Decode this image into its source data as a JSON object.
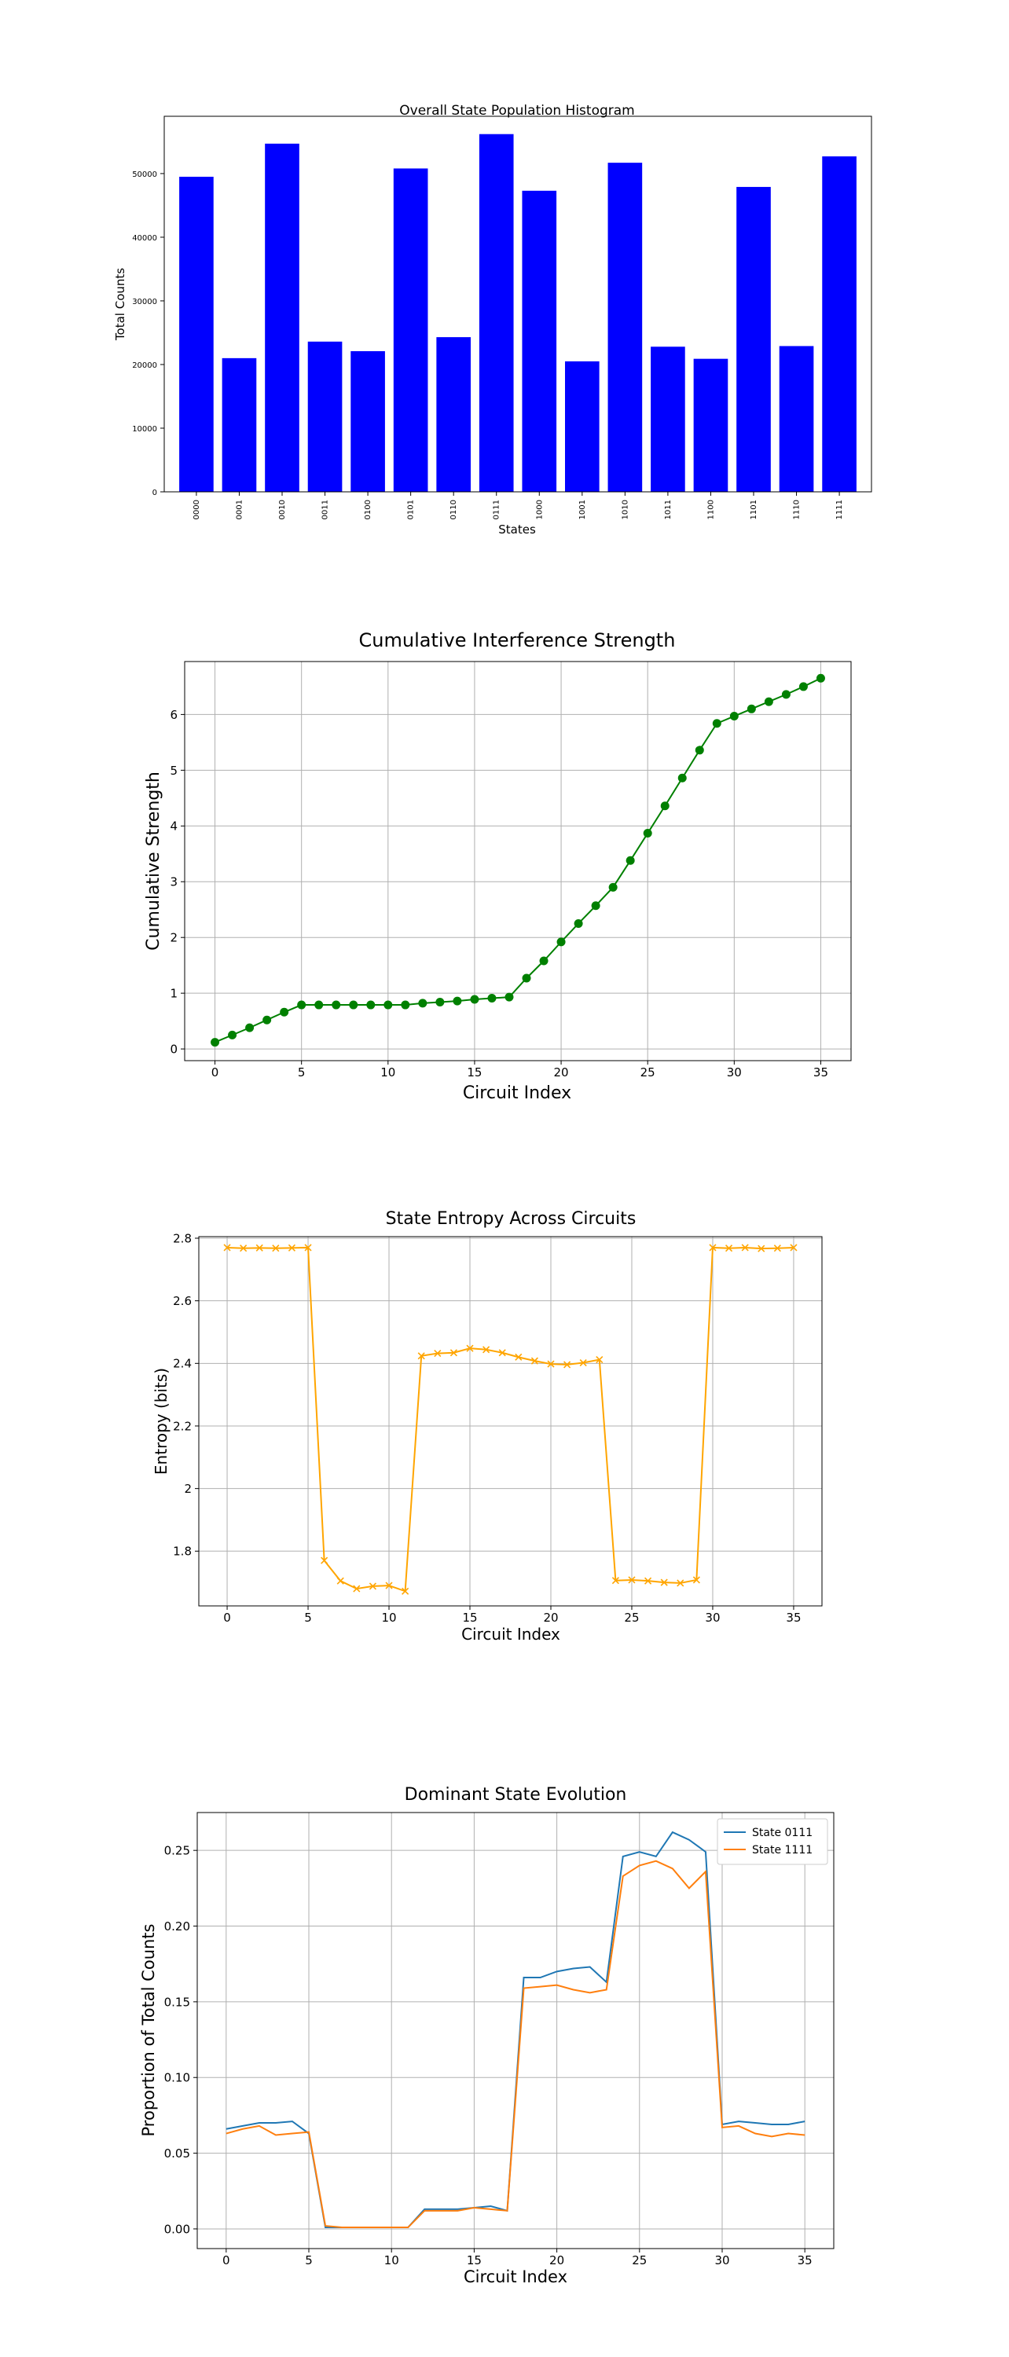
{
  "chart_data": [
    {
      "type": "bar",
      "title": "Overall State Population Histogram",
      "xlabel": "States",
      "ylabel": "Total Counts",
      "categories": [
        "0000",
        "0001",
        "0010",
        "0011",
        "0100",
        "0101",
        "0110",
        "0111",
        "1000",
        "1001",
        "1010",
        "1011",
        "1100",
        "1101",
        "1110",
        "1111"
      ],
      "values": [
        49500,
        21000,
        54700,
        23600,
        22100,
        50800,
        24300,
        56200,
        47300,
        20500,
        51700,
        22800,
        20900,
        47900,
        22900,
        52700
      ],
      "ylim": [
        0,
        59000
      ],
      "yticks": [
        0,
        10000,
        20000,
        30000,
        40000,
        50000
      ],
      "bar_color": "#0000ff",
      "grid": false
    },
    {
      "type": "line",
      "title": "Cumulative Interference Strength",
      "xlabel": "Circuit Index",
      "ylabel": "Cumulative Strength",
      "x": [
        0,
        1,
        2,
        3,
        4,
        5,
        6,
        7,
        8,
        9,
        10,
        11,
        12,
        13,
        14,
        15,
        16,
        17,
        18,
        19,
        20,
        21,
        22,
        23,
        24,
        25,
        26,
        27,
        28,
        29,
        30,
        31,
        32,
        33,
        34,
        35
      ],
      "series": [
        {
          "values": [
            0.12,
            0.25,
            0.38,
            0.52,
            0.66,
            0.79,
            0.79,
            0.79,
            0.79,
            0.79,
            0.79,
            0.79,
            0.82,
            0.84,
            0.86,
            0.89,
            0.91,
            0.93,
            1.27,
            1.58,
            1.92,
            2.25,
            2.57,
            2.9,
            3.38,
            3.87,
            4.36,
            4.86,
            5.36,
            5.84,
            5.97,
            6.1,
            6.23,
            6.36,
            6.5,
            6.65
          ],
          "color": "#008000",
          "marker": "circle"
        }
      ],
      "xlim": [
        -1.75,
        36.75
      ],
      "ylim": [
        -0.21,
        6.95
      ],
      "xticks": [
        0,
        5,
        10,
        15,
        20,
        25,
        30,
        35
      ],
      "yticks": [
        0,
        1,
        2,
        3,
        4,
        5,
        6
      ],
      "grid": true
    },
    {
      "type": "line",
      "title": "State Entropy Across Circuits",
      "xlabel": "Circuit Index",
      "ylabel": "Entropy (bits)",
      "x": [
        0,
        1,
        2,
        3,
        4,
        5,
        6,
        7,
        8,
        9,
        10,
        11,
        12,
        13,
        14,
        15,
        16,
        17,
        18,
        19,
        20,
        21,
        22,
        23,
        24,
        25,
        26,
        27,
        28,
        29,
        30,
        31,
        32,
        33,
        34,
        35
      ],
      "series": [
        {
          "values": [
            2.77,
            2.768,
            2.769,
            2.768,
            2.769,
            2.77,
            1.77,
            1.705,
            1.68,
            1.688,
            1.69,
            1.672,
            2.424,
            2.432,
            2.434,
            2.448,
            2.444,
            2.434,
            2.42,
            2.408,
            2.398,
            2.396,
            2.402,
            2.412,
            1.706,
            1.708,
            1.705,
            1.7,
            1.698,
            1.708,
            2.77,
            2.768,
            2.77,
            2.767,
            2.768,
            2.77
          ],
          "color": "#ffa500",
          "marker": "x"
        }
      ],
      "xlim": [
        -1.75,
        36.75
      ],
      "ylim": [
        1.625,
        2.805
      ],
      "xticks": [
        0,
        5,
        10,
        15,
        20,
        25,
        30,
        35
      ],
      "yticks": [
        1.8,
        2.0,
        2.2,
        2.4,
        2.6,
        2.8
      ],
      "grid": true
    },
    {
      "type": "line",
      "title": "Dominant State Evolution",
      "xlabel": "Circuit Index",
      "ylabel": "Proportion of Total Counts",
      "x": [
        0,
        1,
        2,
        3,
        4,
        5,
        6,
        7,
        8,
        9,
        10,
        11,
        12,
        13,
        14,
        15,
        16,
        17,
        18,
        19,
        20,
        21,
        22,
        23,
        24,
        25,
        26,
        27,
        28,
        29,
        30,
        31,
        32,
        33,
        34,
        35
      ],
      "series": [
        {
          "name": "State 0111",
          "color": "#1f77b4",
          "values": [
            0.066,
            0.068,
            0.07,
            0.07,
            0.071,
            0.063,
            0.001,
            0.001,
            0.001,
            0.001,
            0.001,
            0.001,
            0.013,
            0.013,
            0.013,
            0.014,
            0.015,
            0.012,
            0.166,
            0.166,
            0.17,
            0.172,
            0.173,
            0.163,
            0.246,
            0.249,
            0.246,
            0.262,
            0.257,
            0.249,
            0.069,
            0.071,
            0.07,
            0.069,
            0.069,
            0.071
          ]
        },
        {
          "name": "State 1111",
          "color": "#ff7f0e",
          "values": [
            0.063,
            0.066,
            0.068,
            0.062,
            0.063,
            0.064,
            0.002,
            0.001,
            0.001,
            0.001,
            0.001,
            0.001,
            0.012,
            0.012,
            0.012,
            0.014,
            0.013,
            0.012,
            0.159,
            0.16,
            0.161,
            0.158,
            0.156,
            0.158,
            0.233,
            0.24,
            0.243,
            0.238,
            0.225,
            0.236,
            0.067,
            0.068,
            0.063,
            0.061,
            0.063,
            0.062
          ]
        }
      ],
      "xlim": [
        -1.75,
        36.75
      ],
      "ylim": [
        -0.013,
        0.275
      ],
      "xticks": [
        0,
        5,
        10,
        15,
        20,
        25,
        30,
        35
      ],
      "yticks": [
        0.0,
        0.05,
        0.1,
        0.15,
        0.2,
        0.25
      ],
      "ytick_labels": [
        "0.00",
        "0.05",
        "0.10",
        "0.15",
        "0.20",
        "0.25"
      ],
      "legend": "top-right",
      "grid": true
    }
  ]
}
